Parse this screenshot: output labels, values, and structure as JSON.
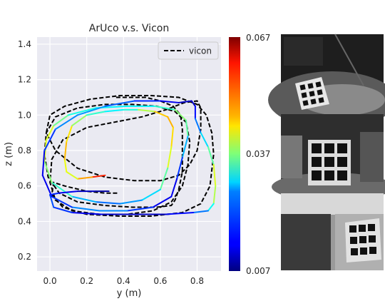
{
  "chart_data": {
    "type": "line",
    "title": "ArUco v.s. Vicon",
    "xlabel": "y (m)",
    "ylabel": "z (m)",
    "xlim": [
      -0.07,
      0.93
    ],
    "ylim": [
      0.12,
      1.44
    ],
    "xticks": [
      "0.0",
      "0.2",
      "0.4",
      "0.6",
      "0.8"
    ],
    "xtick_values": [
      0.0,
      0.2,
      0.4,
      0.6,
      0.8
    ],
    "yticks": [
      "0.2",
      "0.4",
      "0.6",
      "0.8",
      "1.0",
      "1.2",
      "1.4"
    ],
    "ytick_values": [
      0.2,
      0.4,
      0.6,
      0.8,
      1.0,
      1.2,
      1.4
    ],
    "grid": true,
    "background": "#eaeaf2",
    "legend": {
      "position": "top-right",
      "entries": [
        {
          "label": "vicon",
          "style": "dashed",
          "color": "#000000"
        }
      ]
    },
    "colorbar": {
      "colormap": "jet",
      "min_label": "0.007",
      "mid_label": "0.037",
      "max_label": "0.067",
      "min": 0.007,
      "max": 0.067
    },
    "series": [
      {
        "name": "vicon",
        "style": "dashed",
        "color": "#000000",
        "x": [
          0.36,
          0.43,
          0.52,
          0.6,
          0.67,
          0.71,
          0.72,
          0.72,
          0.72,
          0.7,
          0.68,
          0.66,
          0.58,
          0.45,
          0.3,
          0.15,
          0.05,
          -0.01,
          -0.03,
          -0.02,
          0.03,
          0.15,
          0.3,
          0.45,
          0.58,
          0.68,
          0.74,
          0.76,
          0.75,
          0.72,
          0.66,
          0.56,
          0.42,
          0.27,
          0.12,
          0.03,
          0.0,
          0.01,
          0.07,
          0.2,
          0.35,
          0.5,
          0.63,
          0.73,
          0.8,
          0.82,
          0.82,
          0.8,
          0.76,
          0.7,
          0.6,
          0.46,
          0.3,
          0.15,
          0.03,
          -0.02,
          0.0,
          0.08,
          0.22,
          0.38,
          0.55,
          0.7,
          0.8,
          0.85,
          0.88,
          0.89,
          0.87,
          0.82,
          0.72,
          0.55,
          0.38,
          0.2,
          0.07,
          0.01,
          0.02,
          0.08,
          0.2,
          0.3,
          0.37
        ],
        "y": [
          1.1,
          1.1,
          1.1,
          1.08,
          1.05,
          1.0,
          0.92,
          0.8,
          0.68,
          0.58,
          0.52,
          0.49,
          0.48,
          0.48,
          0.49,
          0.51,
          0.56,
          0.65,
          0.78,
          0.9,
          0.99,
          1.04,
          1.06,
          1.06,
          1.05,
          1.02,
          0.96,
          0.85,
          0.72,
          0.6,
          0.51,
          0.46,
          0.44,
          0.44,
          0.46,
          0.52,
          0.62,
          0.75,
          0.86,
          0.93,
          0.96,
          0.99,
          1.03,
          1.07,
          1.08,
          1.04,
          0.92,
          0.8,
          0.72,
          0.66,
          0.63,
          0.63,
          0.65,
          0.7,
          0.8,
          0.9,
          1.0,
          1.05,
          1.09,
          1.11,
          1.11,
          1.1,
          1.06,
          1.0,
          0.9,
          0.78,
          0.6,
          0.5,
          0.45,
          0.43,
          0.43,
          0.44,
          0.48,
          0.55,
          0.62,
          0.6,
          0.57,
          0.56,
          0.56
        ]
      },
      {
        "name": "",
        "style": "solid",
        "colormap_values": true,
        "x": [
          0.3,
          0.23,
          0.15,
          0.09,
          0.08,
          0.09,
          0.12,
          0.2,
          0.3,
          0.4,
          0.48,
          0.57,
          0.64,
          0.67,
          0.66,
          0.64,
          0.6,
          0.5,
          0.38,
          0.25,
          0.12,
          0.01,
          -0.03,
          -0.02,
          0.02,
          0.1,
          0.25,
          0.42,
          0.57,
          0.68,
          0.74,
          0.75,
          0.72,
          0.69,
          0.66,
          0.56,
          0.42,
          0.27,
          0.12,
          0.01,
          -0.04,
          -0.03,
          0.03,
          0.15,
          0.3,
          0.46,
          0.6,
          0.7,
          0.77,
          0.79,
          0.79,
          0.82,
          0.86,
          0.89,
          0.9,
          0.89,
          0.86,
          0.78,
          0.63,
          0.45,
          0.28,
          0.12,
          0.02,
          0.0,
          0.05,
          0.15,
          0.25,
          0.32
        ],
        "y": [
          0.66,
          0.65,
          0.64,
          0.68,
          0.75,
          0.85,
          0.94,
          1.0,
          1.02,
          1.03,
          1.03,
          1.02,
          0.99,
          0.93,
          0.82,
          0.7,
          0.58,
          0.52,
          0.5,
          0.51,
          0.54,
          0.62,
          0.74,
          0.86,
          0.94,
          1.0,
          1.04,
          1.05,
          1.05,
          1.03,
          0.97,
          0.88,
          0.76,
          0.64,
          0.54,
          0.48,
          0.46,
          0.46,
          0.48,
          0.54,
          0.66,
          0.8,
          0.92,
          1.0,
          1.05,
          1.08,
          1.08,
          1.07,
          1.08,
          1.05,
          0.98,
          0.9,
          0.82,
          0.72,
          0.6,
          0.5,
          0.46,
          0.45,
          0.44,
          0.44,
          0.44,
          0.45,
          0.48,
          0.55,
          0.56,
          0.57,
          0.57,
          0.57
        ],
        "c": [
          0.06,
          0.055,
          0.045,
          0.04,
          0.047,
          0.05,
          0.042,
          0.035,
          0.03,
          0.028,
          0.035,
          0.045,
          0.05,
          0.048,
          0.045,
          0.04,
          0.03,
          0.025,
          0.022,
          0.02,
          0.03,
          0.035,
          0.04,
          0.045,
          0.04,
          0.032,
          0.03,
          0.028,
          0.03,
          0.035,
          0.04,
          0.03,
          0.02,
          0.015,
          0.012,
          0.015,
          0.02,
          0.025,
          0.02,
          0.015,
          0.012,
          0.015,
          0.02,
          0.025,
          0.022,
          0.018,
          0.015,
          0.012,
          0.01,
          0.012,
          0.018,
          0.025,
          0.03,
          0.04,
          0.045,
          0.035,
          0.025,
          0.018,
          0.012,
          0.01,
          0.012,
          0.015,
          0.02,
          0.018,
          0.015,
          0.012,
          0.01,
          0.008
        ]
      }
    ]
  }
}
